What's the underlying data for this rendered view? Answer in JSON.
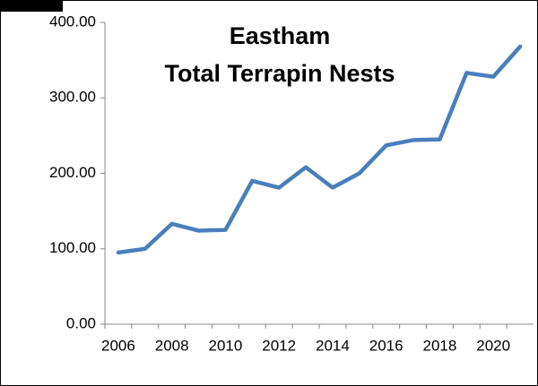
{
  "chart_data": {
    "type": "line",
    "title": [
      "Eastham",
      "Total Terrapin Nests"
    ],
    "categories": [
      "2006",
      null,
      "2008",
      null,
      "2010",
      null,
      "2012",
      null,
      "2014",
      null,
      "2016",
      null,
      "2018",
      null,
      "2020",
      null
    ],
    "values": [
      95,
      100,
      133,
      124,
      125,
      190,
      181,
      208,
      181,
      200,
      237,
      244,
      245,
      333,
      328,
      368
    ],
    "color": "#4a7ebb",
    "ylim": [
      0,
      400
    ],
    "yticks": [
      {
        "value": 0,
        "label": "0.00"
      },
      {
        "value": 100,
        "label": "100.00"
      },
      {
        "value": 200,
        "label": "200.00"
      },
      {
        "value": 300,
        "label": "300.00"
      },
      {
        "value": 400,
        "label": "400.00"
      }
    ],
    "grid": false
  }
}
